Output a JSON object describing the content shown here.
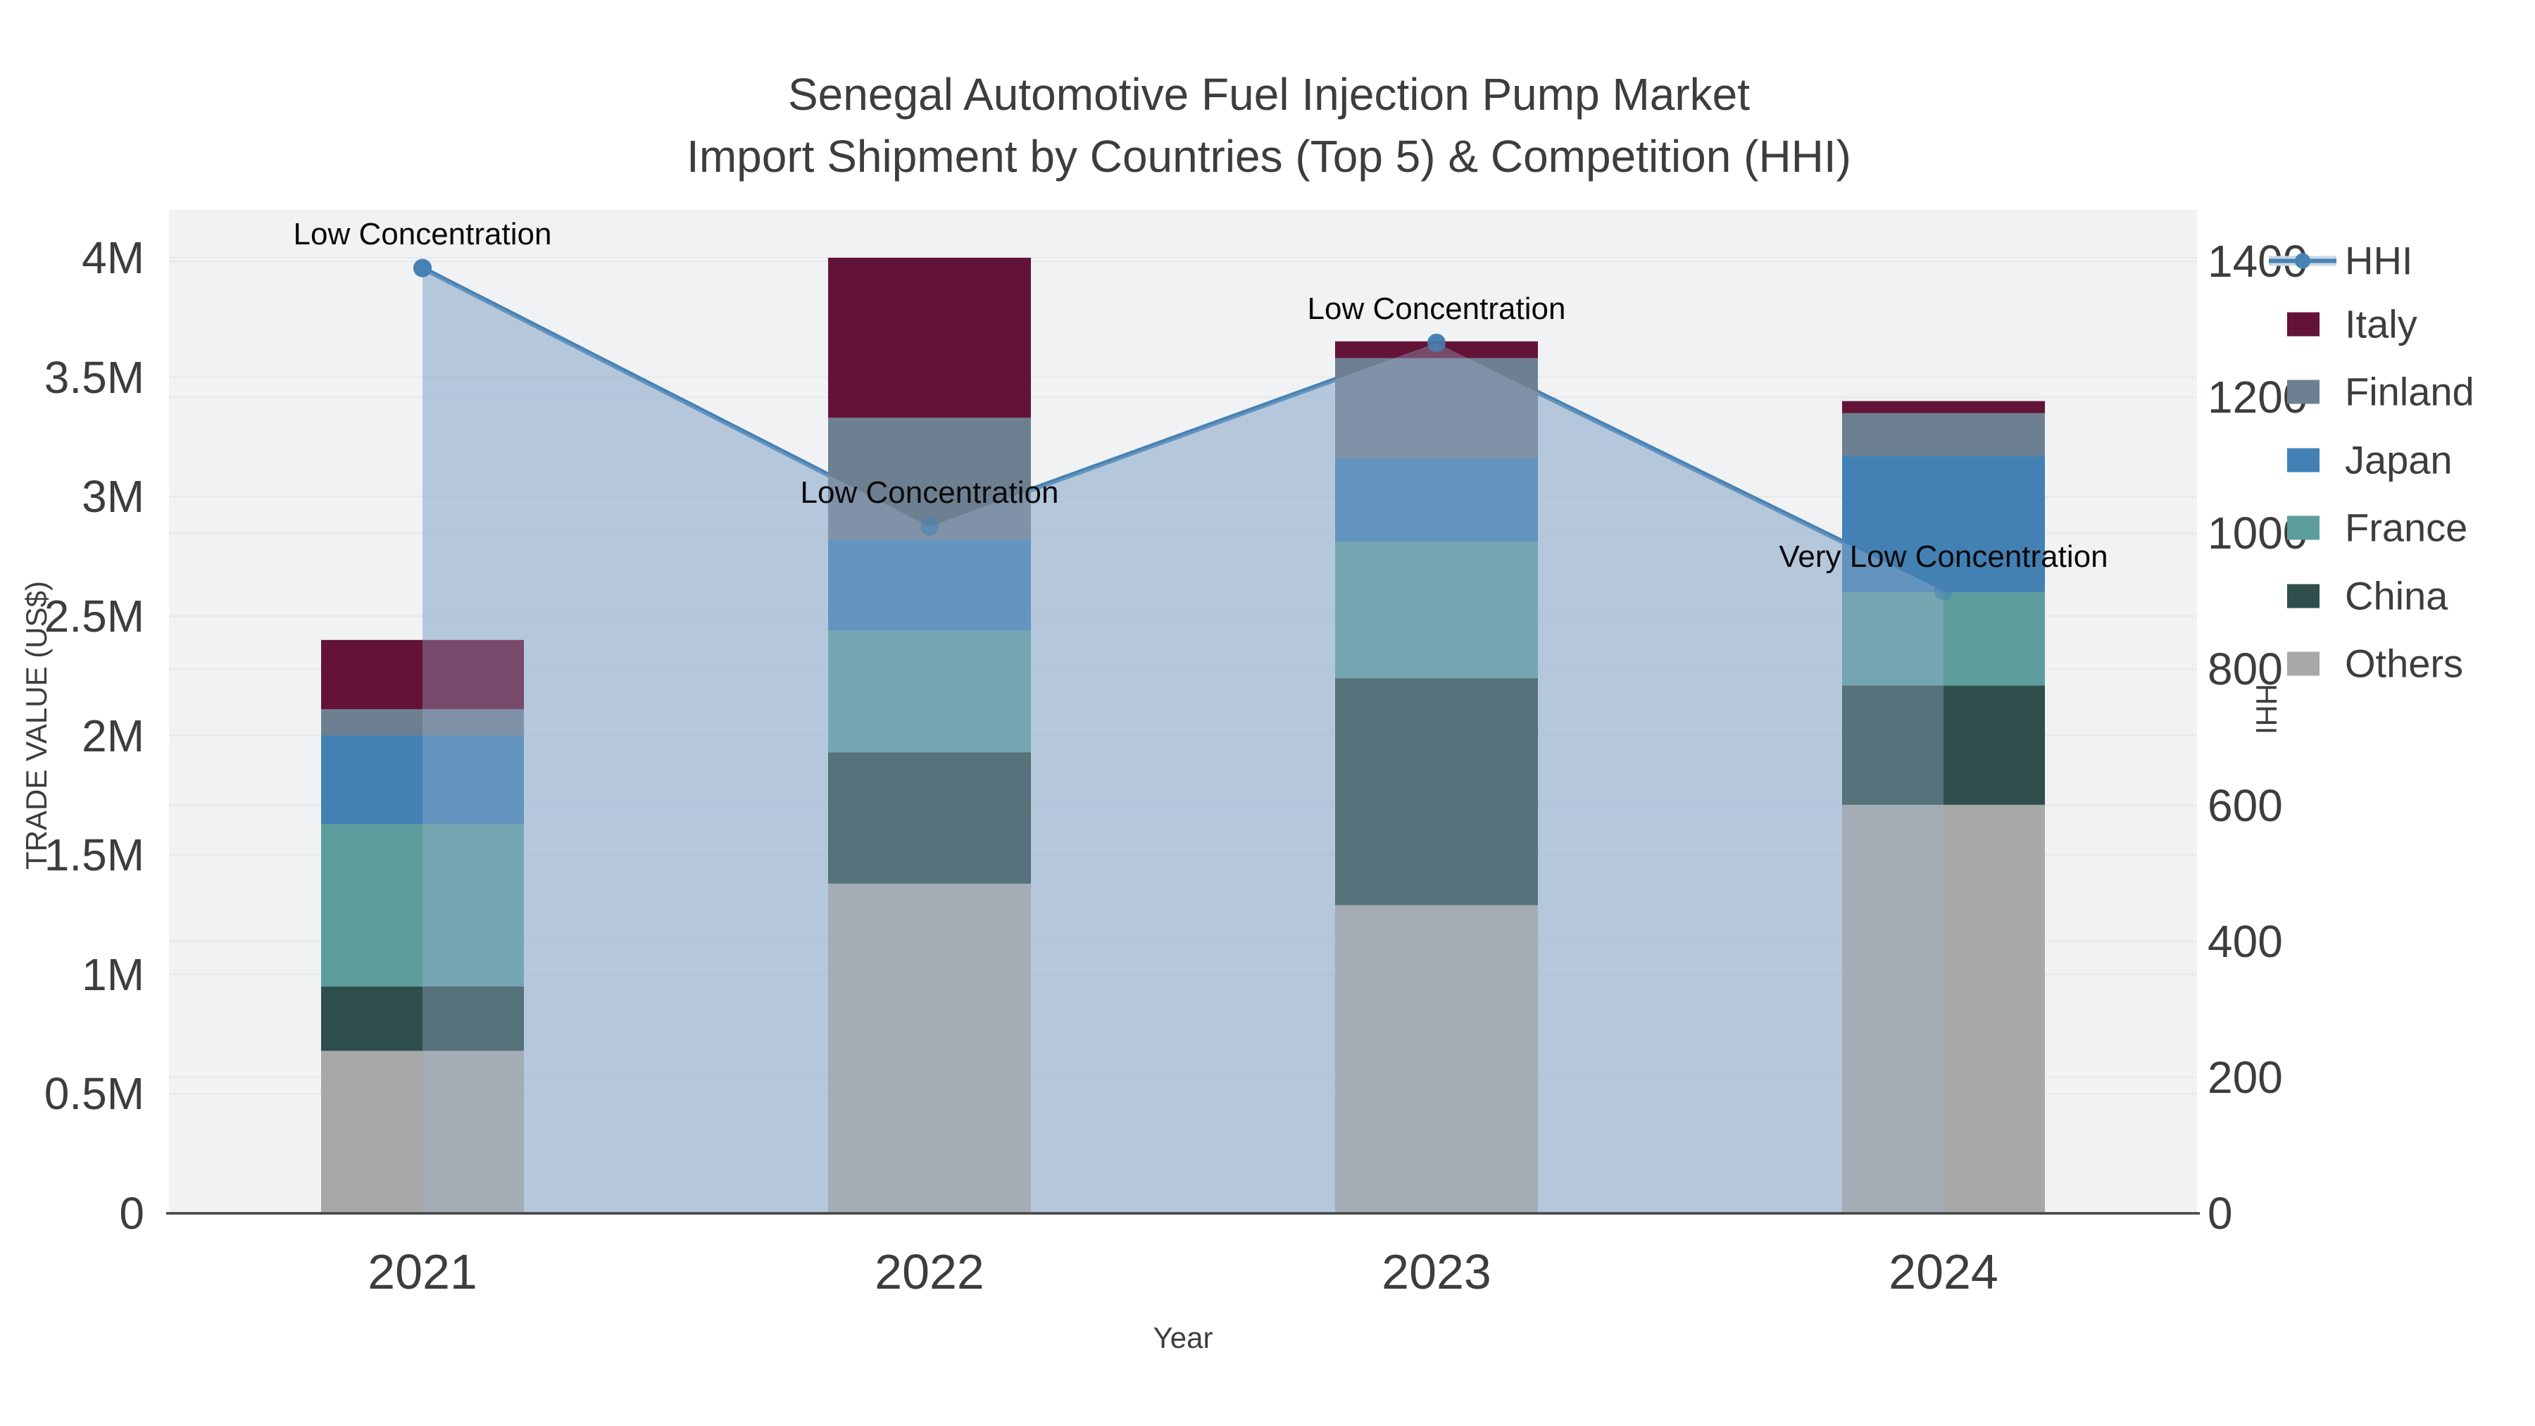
{
  "title": {
    "line1": "Senegal Automotive Fuel Injection Pump Market",
    "line2": "Import Shipment by Countries (Top 5) & Competition (HHI)"
  },
  "axes": {
    "x": {
      "title": "Year",
      "categories": [
        "2021",
        "2022",
        "2023",
        "2024"
      ]
    },
    "y_left": {
      "title": "TRADE VALUE (US$)",
      "tick_labels": [
        "0",
        "0.5M",
        "1M",
        "1.5M",
        "2M",
        "2.5M",
        "3M",
        "3.5M",
        "4M"
      ],
      "tick_values": [
        0,
        0.5,
        1,
        1.5,
        2,
        2.5,
        3,
        3.5,
        4
      ],
      "range": [
        0,
        4.2
      ]
    },
    "y_right": {
      "title": "HHI",
      "tick_labels": [
        "0",
        "200",
        "400",
        "600",
        "800",
        "1000",
        "1200",
        "1400"
      ],
      "tick_values": [
        0,
        200,
        400,
        600,
        800,
        1000,
        1200,
        1400
      ],
      "range": [
        0,
        1475
      ]
    }
  },
  "legend": {
    "items": [
      {
        "label": "HHI",
        "type": "line",
        "color": "#4682b4"
      },
      {
        "label": "Italy",
        "type": "swatch",
        "color": "#631337"
      },
      {
        "label": "Finland",
        "type": "swatch",
        "color": "#6d8091"
      },
      {
        "label": "Japan",
        "type": "swatch",
        "color": "#4381b5"
      },
      {
        "label": "France",
        "type": "swatch",
        "color": "#5d9d9e"
      },
      {
        "label": "China",
        "type": "swatch",
        "color": "#2f4f4d"
      },
      {
        "label": "Others",
        "type": "swatch",
        "color": "#a7a8a8"
      }
    ]
  },
  "chart_data": {
    "type": "combo_stacked_bar_line",
    "title": "Senegal Automotive Fuel Injection Pump Market — Import Shipment by Countries (Top 5) & Competition (HHI)",
    "xlabel": "Year",
    "ylabel_left": "TRADE VALUE (US$)",
    "ylabel_right": "HHI",
    "categories": [
      "2021",
      "2022",
      "2023",
      "2024"
    ],
    "units": "million US$",
    "stack_order_bottom_to_top": [
      "Others",
      "China",
      "France",
      "Japan",
      "Finland",
      "Italy"
    ],
    "series": [
      {
        "name": "Others",
        "color": "#a7a8a8",
        "values": [
          0.68,
          1.38,
          1.29,
          1.71
        ]
      },
      {
        "name": "China",
        "color": "#2f4f4d",
        "values": [
          0.27,
          0.55,
          0.95,
          0.5
        ]
      },
      {
        "name": "France",
        "color": "#5d9d9e",
        "values": [
          0.68,
          0.51,
          0.57,
          0.39
        ]
      },
      {
        "name": "Japan",
        "color": "#4381b5",
        "values": [
          0.37,
          0.38,
          0.35,
          0.57
        ]
      },
      {
        "name": "Finland",
        "color": "#6d8091",
        "values": [
          0.11,
          0.51,
          0.42,
          0.18
        ]
      },
      {
        "name": "Italy",
        "color": "#631337",
        "values": [
          0.29,
          0.67,
          0.07,
          0.05
        ]
      }
    ],
    "bar_totals": [
      2.4,
      4.0,
      3.65,
      3.4
    ],
    "hhi_line": {
      "name": "HHI",
      "color": "#4682b4",
      "fill_color": "rgba(70,130,180,0.28)",
      "values": [
        1390,
        1010,
        1280,
        915
      ]
    },
    "annotations": [
      "Low Concentration",
      "Low Concentration",
      "Low Concentration",
      "Very Low Concentration"
    ],
    "legend_position": "right",
    "grid": true,
    "plot_background": "#f1f2f3"
  }
}
